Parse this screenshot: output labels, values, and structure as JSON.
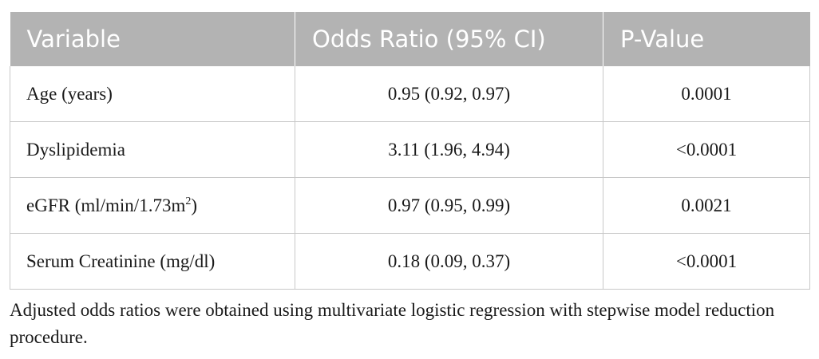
{
  "table": {
    "headers": [
      "Variable",
      "Odds Ratio (95% CI)",
      "P-Value"
    ],
    "rows": [
      {
        "variable": "Age (years)",
        "variable_sup": "",
        "variable_suffix": "",
        "odds_ratio": "0.95 (0.92, 0.97)",
        "p_value": "0.0001"
      },
      {
        "variable": "Dyslipidemia",
        "variable_sup": "",
        "variable_suffix": "",
        "odds_ratio": "3.11 (1.96, 4.94)",
        "p_value": "<0.0001"
      },
      {
        "variable": "eGFR (ml/min/1.73m",
        "variable_sup": "2",
        "variable_suffix": ")",
        "odds_ratio": "0.97 (0.95, 0.99)",
        "p_value": "0.0021"
      },
      {
        "variable": "Serum Creatinine (mg/dl)",
        "variable_sup": "",
        "variable_suffix": "",
        "odds_ratio": "0.18 (0.09, 0.37)",
        "p_value": "<0.0001"
      }
    ]
  },
  "footnote": "Adjusted odds ratios were obtained using multivariate logistic regression with stepwise model reduction procedure.",
  "colors": {
    "header_background": "#b3b3b3",
    "header_text": "#ffffff",
    "cell_border": "#c8c8c8",
    "body_text": "#1a1a1a"
  }
}
